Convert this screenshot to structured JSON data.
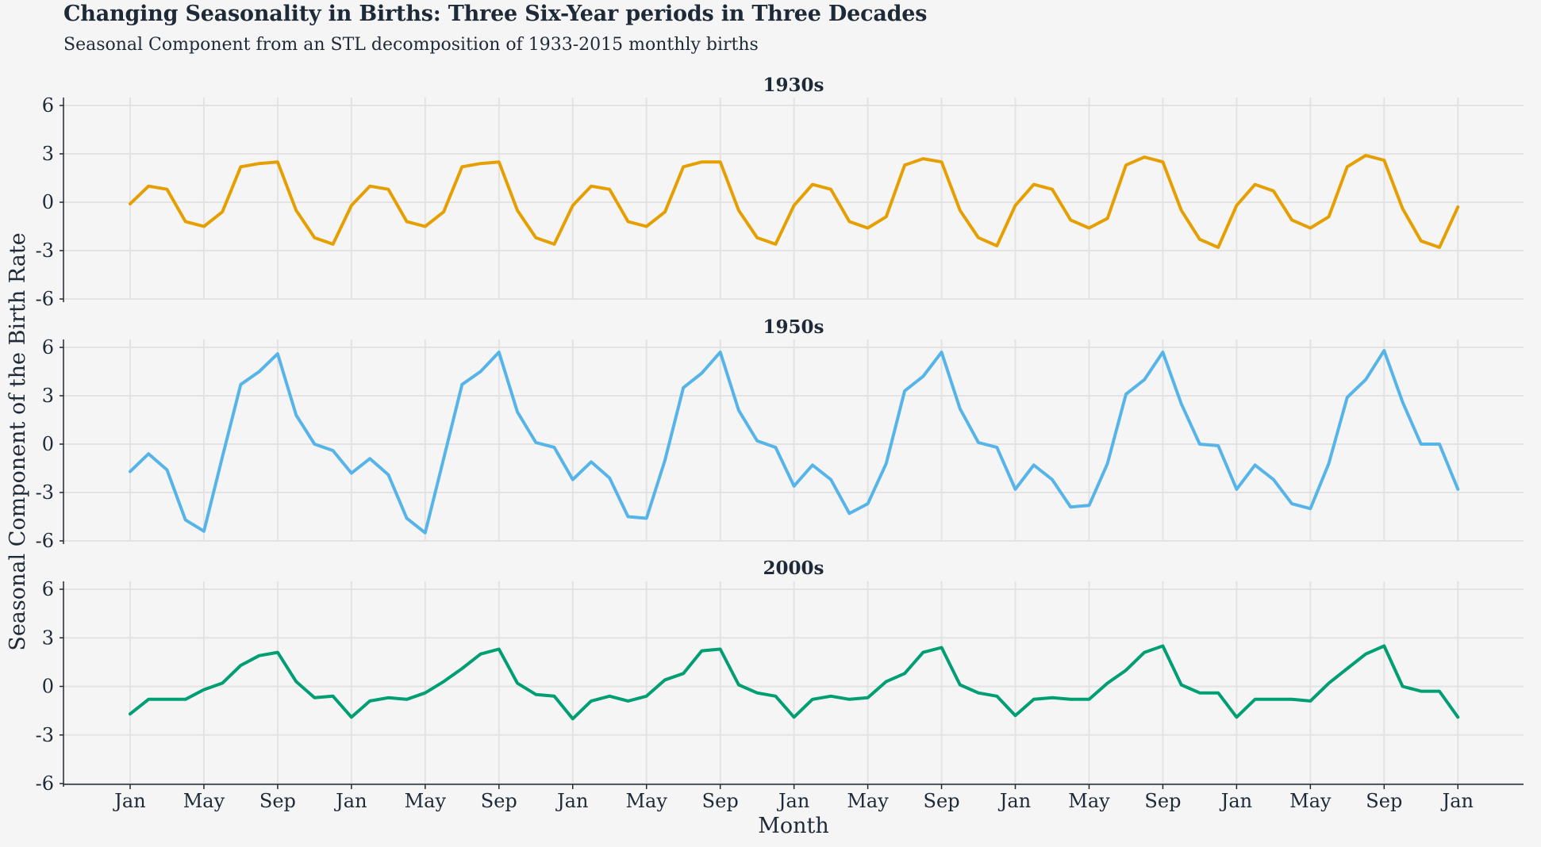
{
  "title": "Changing Seasonality in Births: Three Six-Year periods in Three Decades",
  "subtitle": "Seasonal Component from an STL decomposition of 1933-2015 monthly births",
  "chart_data": {
    "type": "line",
    "xlabel": "Month",
    "ylabel": "Seasonal Component of the Birth Rate",
    "ylim": [
      -6,
      6
    ],
    "yticks": [
      -6,
      -3,
      0,
      3,
      6
    ],
    "xticks": [
      "Jan",
      "May",
      "Sep",
      "Jan",
      "May",
      "Sep",
      "Jan",
      "May",
      "Sep",
      "Jan",
      "May",
      "Sep",
      "Jan",
      "May",
      "Sep",
      "Jan",
      "May",
      "Sep",
      "Jan"
    ],
    "x_start": "Jan",
    "n_months": 73,
    "grid": true,
    "panels": [
      {
        "name": "1930s",
        "color": "#E69F00",
        "values": [
          -0.1,
          1.0,
          0.8,
          -1.2,
          -1.5,
          -0.6,
          2.2,
          2.4,
          2.5,
          -0.5,
          -2.2,
          -2.6,
          -0.2,
          1.0,
          0.8,
          -1.2,
          -1.5,
          -0.6,
          2.2,
          2.4,
          2.5,
          -0.5,
          -2.2,
          -2.6,
          -0.2,
          1.0,
          0.8,
          -1.2,
          -1.5,
          -0.6,
          2.2,
          2.5,
          2.5,
          -0.5,
          -2.2,
          -2.6,
          -0.2,
          1.1,
          0.8,
          -1.2,
          -1.6,
          -0.9,
          2.3,
          2.7,
          2.5,
          -0.5,
          -2.2,
          -2.7,
          -0.2,
          1.1,
          0.8,
          -1.1,
          -1.6,
          -1.0,
          2.3,
          2.8,
          2.5,
          -0.5,
          -2.3,
          -2.8,
          -0.2,
          1.1,
          0.7,
          -1.1,
          -1.6,
          -0.9,
          2.2,
          2.9,
          2.6,
          -0.4,
          -2.4,
          -2.8,
          -0.3
        ]
      },
      {
        "name": "1950s",
        "color": "#56B4E9",
        "values": [
          -1.7,
          -0.6,
          -1.6,
          -4.7,
          -5.4,
          -0.8,
          3.7,
          4.5,
          5.6,
          1.8,
          0.0,
          -0.4,
          -1.8,
          -0.9,
          -1.9,
          -4.6,
          -5.5,
          -0.9,
          3.7,
          4.5,
          5.7,
          2.0,
          0.1,
          -0.2,
          -2.2,
          -1.1,
          -2.1,
          -4.5,
          -4.6,
          -1.0,
          3.5,
          4.4,
          5.7,
          2.1,
          0.2,
          -0.2,
          -2.6,
          -1.3,
          -2.2,
          -4.3,
          -3.7,
          -1.2,
          3.3,
          4.2,
          5.7,
          2.2,
          0.1,
          -0.2,
          -2.8,
          -1.3,
          -2.2,
          -3.9,
          -3.8,
          -1.2,
          3.1,
          4.0,
          5.7,
          2.5,
          0.0,
          -0.1,
          -2.8,
          -1.3,
          -2.2,
          -3.7,
          -4.0,
          -1.2,
          2.9,
          4.0,
          5.8,
          2.6,
          0.0,
          0.0,
          -2.8
        ]
      },
      {
        "name": "2000s",
        "color": "#009E73",
        "values": [
          -1.7,
          -0.8,
          -0.8,
          -0.8,
          -0.2,
          0.2,
          1.3,
          1.9,
          2.1,
          0.3,
          -0.7,
          -0.6,
          -1.9,
          -0.9,
          -0.7,
          -0.8,
          -0.4,
          0.3,
          1.1,
          2.0,
          2.3,
          0.2,
          -0.5,
          -0.6,
          -2.0,
          -0.9,
          -0.6,
          -0.9,
          -0.6,
          0.4,
          0.8,
          2.2,
          2.3,
          0.1,
          -0.4,
          -0.6,
          -1.9,
          -0.8,
          -0.6,
          -0.8,
          -0.7,
          0.3,
          0.8,
          2.1,
          2.4,
          0.1,
          -0.4,
          -0.6,
          -1.8,
          -0.8,
          -0.7,
          -0.8,
          -0.8,
          0.2,
          1.0,
          2.1,
          2.5,
          0.1,
          -0.4,
          -0.4,
          -1.9,
          -0.8,
          -0.8,
          -0.8,
          -0.9,
          0.2,
          1.1,
          2.0,
          2.5,
          0.0,
          -0.3,
          -0.3,
          -1.9
        ]
      }
    ]
  }
}
